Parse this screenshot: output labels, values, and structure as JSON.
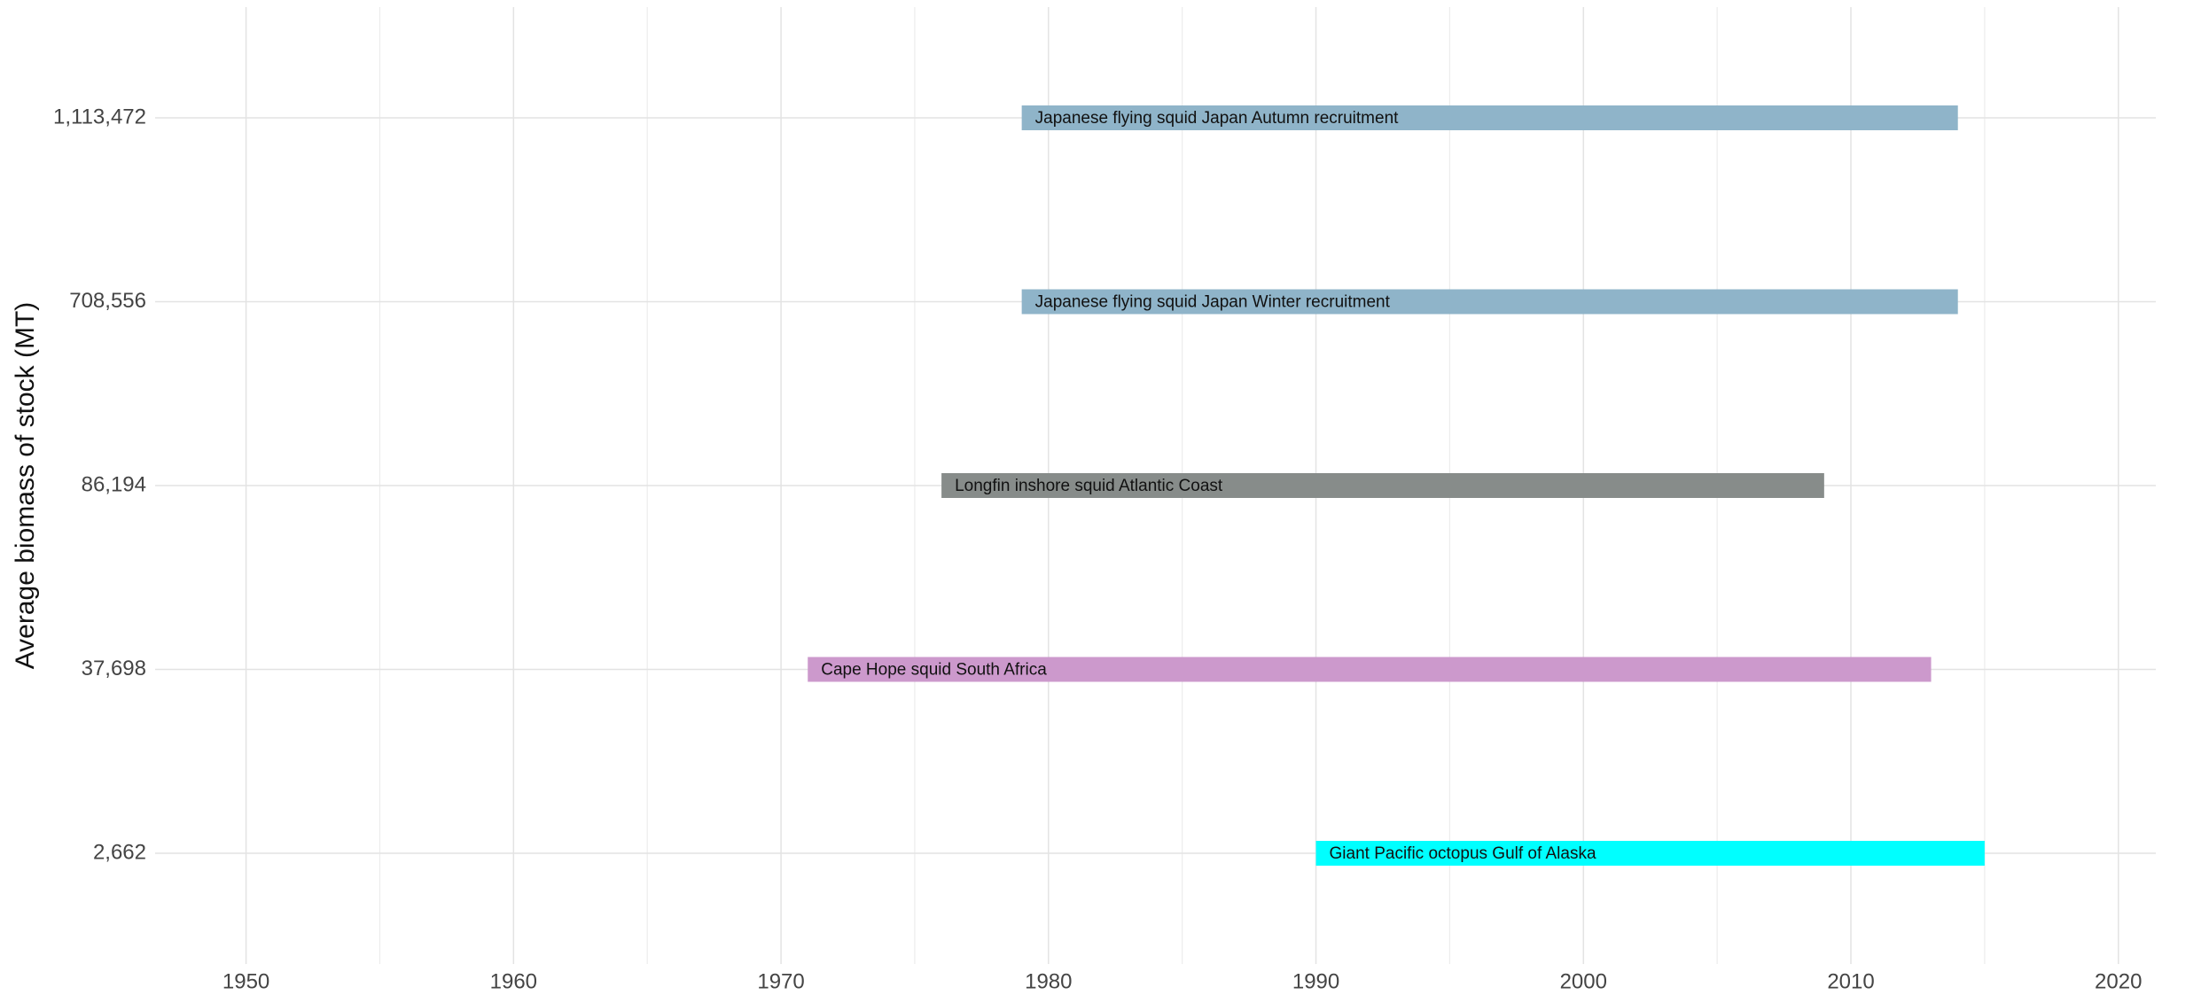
{
  "chart_data": {
    "type": "range-bar",
    "ylabel": "Average biomass of stock (MT)",
    "categories": [
      "2,662",
      "37,698",
      "86,194",
      "708,556",
      "1,113,472"
    ],
    "labels": [
      "Giant Pacific octopus Gulf of Alaska",
      "Cape Hope squid South Africa",
      "Longfin inshore squid Atlantic Coast",
      "Japanese flying squid Japan Winter recruitment",
      "Japanese flying squid Japan Autumn recruitment"
    ],
    "start": [
      1990,
      1971,
      1976,
      1979,
      1979
    ],
    "end": [
      2015,
      2013,
      2009,
      2014,
      2014
    ],
    "colors": [
      "#00ffff",
      "#cc99cc",
      "#878c8a",
      "#8fb4c9",
      "#8fb4c9"
    ],
    "xlim": [
      1946.6,
      2021.4
    ],
    "xticks": [
      1950,
      1960,
      1970,
      1980,
      1990,
      2000,
      2010,
      2020
    ],
    "xminorticks": [
      1955,
      1965,
      1975,
      1985,
      1995,
      2005,
      2015
    ],
    "grid": true
  }
}
